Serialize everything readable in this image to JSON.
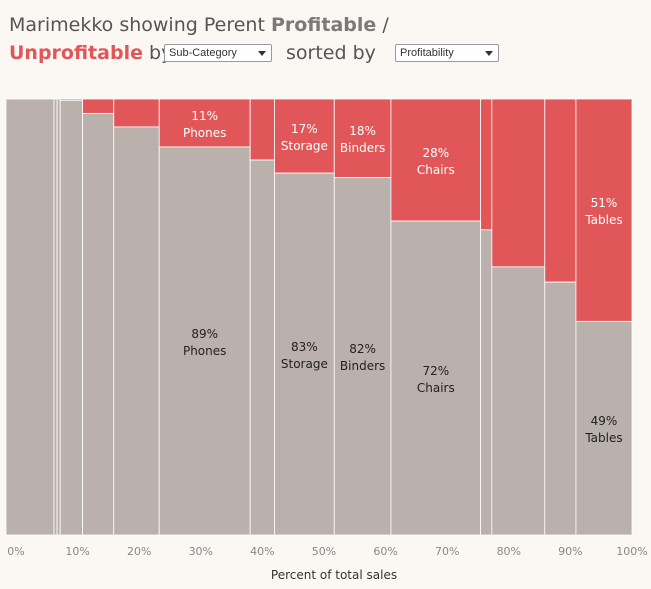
{
  "header": {
    "line1_prefix": "Marimekko showing Perent ",
    "profitable_word": "Profitable",
    "line1_suffix": " /",
    "unprofitable_word": "Unprofitable",
    "line2_by": " by",
    "sorted_by": "sorted by"
  },
  "controls": {
    "category_value": "Sub-Category",
    "sort_value": "Profitability"
  },
  "colors": {
    "profitable": "#bab0ac",
    "unprofitable": "#e15759",
    "background": "#fbf8f4"
  },
  "chart_data": {
    "type": "marimekko",
    "title": "Marimekko showing Perent Profitable / Unprofitable by Sub-Category sorted by Profitability",
    "xlabel": "Percent of total sales",
    "ylabel": "",
    "x_ticks": [
      "0%",
      "10%",
      "20%",
      "30%",
      "40%",
      "50%",
      "60%",
      "70%",
      "80%",
      "90%",
      "100%"
    ],
    "xlim": [
      0,
      100
    ],
    "ylim": [
      0,
      100
    ],
    "series_names": [
      "Profitable",
      "Unprofitable"
    ],
    "segments": [
      {
        "name": "",
        "share": 7.7,
        "unprofitable": 0
      },
      {
        "name": "",
        "share": 0.5,
        "unprofitable": 0
      },
      {
        "name": "",
        "share": 0.5,
        "unprofitable": 0
      },
      {
        "name": "",
        "share": 3.6,
        "unprofitable": 0.3
      },
      {
        "name": "",
        "share": 5.0,
        "unprofitable": 3.3
      },
      {
        "name": "",
        "share": 7.3,
        "unprofitable": 6.4
      },
      {
        "name": "Phones",
        "share": 14.6,
        "unprofitable": 11,
        "unprofitable_label": "11%",
        "profitable_label": "89%"
      },
      {
        "name": "",
        "share": 3.9,
        "unprofitable": 14
      },
      {
        "name": "Storage",
        "share": 9.6,
        "unprofitable": 17,
        "unprofitable_label": "17%",
        "profitable_label": "83%"
      },
      {
        "name": "Binders",
        "share": 9.1,
        "unprofitable": 18,
        "unprofitable_label": "18%",
        "profitable_label": "82%"
      },
      {
        "name": "Chairs",
        "share": 14.4,
        "unprofitable": 28,
        "unprofitable_label": "28%",
        "profitable_label": "72%"
      },
      {
        "name": "",
        "share": 1.8,
        "unprofitable": 30
      },
      {
        "name": "",
        "share": 8.5,
        "unprofitable": 38.5
      },
      {
        "name": "",
        "share": 5.0,
        "unprofitable": 42
      },
      {
        "name": "Tables",
        "share": 9.0,
        "unprofitable": 51,
        "unprofitable_label": "51%",
        "profitable_label": "49%"
      }
    ]
  }
}
